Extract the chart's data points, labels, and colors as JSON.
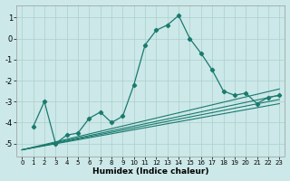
{
  "xlabel": "Humidex (Indice chaleur)",
  "ylabel": "",
  "bg_color": "#cce8e8",
  "line_color": "#1a7a6e",
  "grid_color": "#aad0cc",
  "xlim": [
    -0.5,
    23.5
  ],
  "ylim": [
    -5.6,
    1.6
  ],
  "yticks": [
    -5,
    -4,
    -3,
    -2,
    -1,
    0,
    1
  ],
  "xticks": [
    0,
    1,
    2,
    3,
    4,
    5,
    6,
    7,
    8,
    9,
    10,
    11,
    12,
    13,
    14,
    15,
    16,
    17,
    18,
    19,
    20,
    21,
    22,
    23
  ],
  "series_marked": {
    "x": [
      1,
      2,
      3,
      4,
      5,
      6,
      7,
      8,
      9,
      10,
      11,
      12,
      13,
      14,
      15,
      16,
      17,
      18,
      19,
      20,
      21,
      22,
      23
    ],
    "y": [
      -4.2,
      -3.0,
      -5.0,
      -4.6,
      -4.5,
      -3.8,
      -3.5,
      -4.0,
      -3.7,
      -2.2,
      -0.3,
      0.4,
      0.65,
      1.1,
      0.0,
      -0.7,
      -1.5,
      -2.5,
      -2.7,
      -2.6,
      -3.1,
      -2.8,
      -2.7
    ]
  },
  "line1": {
    "x": [
      0,
      23
    ],
    "y": [
      -5.3,
      -2.7
    ]
  },
  "line2": {
    "x": [
      0,
      23
    ],
    "y": [
      -5.3,
      -2.5
    ]
  },
  "line3": {
    "x": [
      0,
      23
    ],
    "y": [
      -5.3,
      -3.0
    ]
  },
  "line4": {
    "x": [
      0,
      23
    ],
    "y": [
      -5.3,
      -2.2
    ]
  }
}
